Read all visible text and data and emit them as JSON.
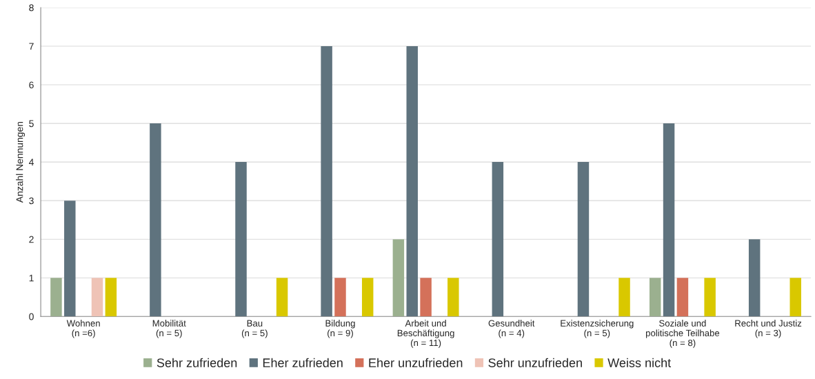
{
  "chart_data": {
    "type": "bar",
    "ylabel": "Anzahl Nennungen",
    "categories": [
      "Wohnen\n(n =6)",
      "Mobilität\n(n = 5)",
      "Bau\n(n = 5)",
      "Bildung\n(n = 9)",
      "Arbeit und\nBeschäftigung\n(n = 11)",
      "Gesundheit\n(n = 4)",
      "Existenzsicherung\n(n = 5)",
      "Soziale und\npolitische Teilhabe\n(n = 8)",
      "Recht und Justiz\n(n = 3)"
    ],
    "series": [
      {
        "name": "Sehr zufrieden",
        "color": "#9bb08f",
        "values": [
          1,
          null,
          null,
          null,
          2,
          null,
          null,
          1,
          null
        ]
      },
      {
        "name": "Eher zufrieden",
        "color": "#5f737e",
        "values": [
          3,
          5,
          4,
          7,
          7,
          4,
          4,
          5,
          2
        ]
      },
      {
        "name": "Eher unzufrieden",
        "color": "#d4715a",
        "values": [
          null,
          null,
          null,
          1,
          1,
          null,
          null,
          1,
          null
        ]
      },
      {
        "name": "Sehr unzufrieden",
        "color": "#efc3b6",
        "values": [
          1,
          null,
          null,
          null,
          null,
          null,
          null,
          null,
          null
        ]
      },
      {
        "name": "Weiss nicht",
        "color": "#d9c800",
        "values": [
          1,
          null,
          1,
          1,
          1,
          null,
          1,
          1,
          1
        ]
      }
    ],
    "ylim": [
      0,
      8
    ],
    "yticks": [
      0,
      1,
      2,
      3,
      4,
      5,
      6,
      7,
      8
    ],
    "grid": "y",
    "legend": "bottom"
  }
}
